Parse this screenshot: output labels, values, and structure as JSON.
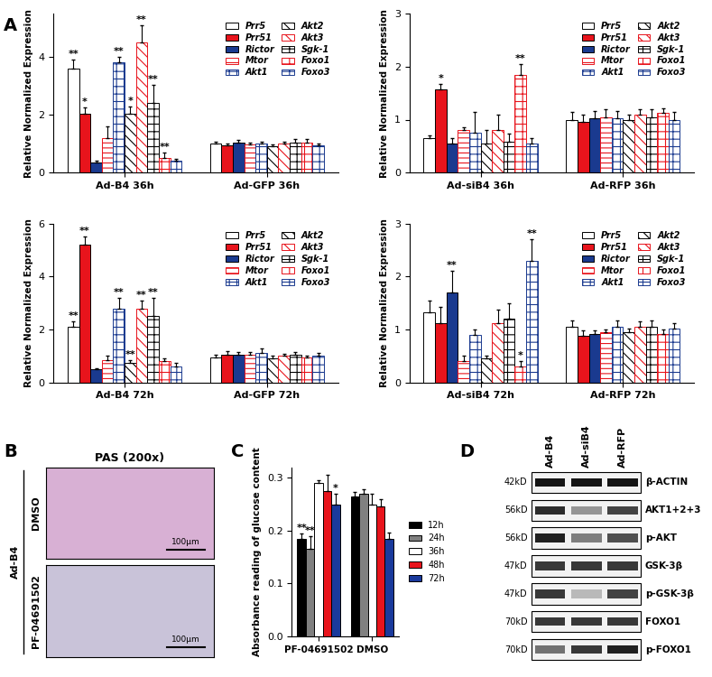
{
  "panel_labels": [
    "A",
    "B",
    "C",
    "D"
  ],
  "chart_data": [
    {
      "type": "bar",
      "y_label": "Relative Normalized Expression",
      "categories": [
        "Ad-B4 36h",
        "Ad-GFP 36h"
      ],
      "ylim": [
        0,
        5.5
      ],
      "yticks": [
        0,
        2,
        4
      ],
      "legend": "upper right",
      "series": [
        {
          "name": "Prr5",
          "color": "#ffffff",
          "values": [
            3.6,
            1.0
          ],
          "errors": [
            0.3,
            0.08
          ],
          "significance": [
            "**",
            null
          ]
        },
        {
          "name": "Prr51",
          "color": "#e8141c",
          "values": [
            2.05,
            0.95
          ],
          "errors": [
            0.2,
            0.06
          ],
          "significance": [
            "*",
            null
          ]
        },
        {
          "name": "Rictor",
          "color": "#1a3a8f",
          "values": [
            0.35,
            1.05
          ],
          "errors": [
            0.05,
            0.08
          ],
          "significance": [
            null,
            null
          ]
        },
        {
          "name": "Mtor",
          "color": "#e8141c",
          "values": [
            1.2,
            0.98
          ],
          "errors": [
            0.4,
            0.07
          ],
          "significance": [
            null,
            null
          ]
        },
        {
          "name": "Akt1",
          "color": "#1a3a8f",
          "values": [
            3.8,
            1.0
          ],
          "errors": [
            0.2,
            0.08
          ],
          "significance": [
            "**",
            null
          ]
        },
        {
          "name": "Akt2",
          "color": "#000000",
          "values": [
            2.05,
            0.92
          ],
          "errors": [
            0.25,
            0.06
          ],
          "significance": [
            "*",
            null
          ]
        },
        {
          "name": "Akt3",
          "color": "#e8141c",
          "values": [
            4.5,
            1.0
          ],
          "errors": [
            0.6,
            0.08
          ],
          "significance": [
            "**",
            null
          ]
        },
        {
          "name": "Sgk-1",
          "color": "#000000",
          "values": [
            2.4,
            1.05
          ],
          "errors": [
            0.65,
            0.1
          ],
          "significance": [
            "**",
            null
          ]
        },
        {
          "name": "Foxo1",
          "color": "#e8141c",
          "values": [
            0.5,
            1.05
          ],
          "errors": [
            0.2,
            0.1
          ],
          "significance": [
            "**",
            null
          ]
        },
        {
          "name": "Foxo3",
          "color": "#1a3a8f",
          "values": [
            0.4,
            0.95
          ],
          "errors": [
            0.08,
            0.06
          ],
          "significance": [
            null,
            null
          ]
        }
      ]
    },
    {
      "type": "bar",
      "y_label": "Relative Normalized Expression",
      "categories": [
        "Ad-siB4 36h",
        "Ad-RFP 36h"
      ],
      "ylim": [
        0,
        3
      ],
      "yticks": [
        0,
        1,
        2,
        3
      ],
      "legend": "upper right",
      "series": [
        {
          "name": "Prr5",
          "color": "#ffffff",
          "values": [
            0.65,
            1.0
          ],
          "errors": [
            0.05,
            0.15
          ],
          "significance": [
            null,
            null
          ]
        },
        {
          "name": "Prr51",
          "color": "#e8141c",
          "values": [
            1.57,
            0.95
          ],
          "errors": [
            0.1,
            0.15
          ],
          "significance": [
            "*",
            null
          ]
        },
        {
          "name": "Rictor",
          "color": "#1a3a8f",
          "values": [
            0.55,
            1.02
          ],
          "errors": [
            0.1,
            0.15
          ],
          "significance": [
            null,
            null
          ]
        },
        {
          "name": "Mtor",
          "color": "#e8141c",
          "values": [
            0.8,
            1.05
          ],
          "errors": [
            0.05,
            0.15
          ],
          "significance": [
            null,
            null
          ]
        },
        {
          "name": "Akt1",
          "color": "#1a3a8f",
          "values": [
            0.75,
            1.02
          ],
          "errors": [
            0.4,
            0.15
          ],
          "significance": [
            null,
            null
          ]
        },
        {
          "name": "Akt2",
          "color": "#000000",
          "values": [
            0.55,
            1.0
          ],
          "errors": [
            0.25,
            0.1
          ],
          "significance": [
            null,
            null
          ]
        },
        {
          "name": "Akt3",
          "color": "#e8141c",
          "values": [
            0.8,
            1.1
          ],
          "errors": [
            0.3,
            0.1
          ],
          "significance": [
            null,
            null
          ]
        },
        {
          "name": "Sgk-1",
          "color": "#000000",
          "values": [
            0.58,
            1.05
          ],
          "errors": [
            0.15,
            0.15
          ],
          "significance": [
            null,
            null
          ]
        },
        {
          "name": "Foxo1",
          "color": "#e8141c",
          "values": [
            1.85,
            1.12
          ],
          "errors": [
            0.2,
            0.1
          ],
          "significance": [
            "**",
            null
          ]
        },
        {
          "name": "Foxo3",
          "color": "#1a3a8f",
          "values": [
            0.55,
            1.0
          ],
          "errors": [
            0.1,
            0.15
          ],
          "significance": [
            null,
            null
          ]
        }
      ]
    },
    {
      "type": "bar",
      "y_label": "Relative Normalized Expression",
      "categories": [
        "Ad-B4 72h",
        "Ad-GFP 72h"
      ],
      "ylim": [
        0,
        6
      ],
      "yticks": [
        0,
        2,
        4,
        6
      ],
      "legend": "upper right",
      "series": [
        {
          "name": "Prr5",
          "color": "#ffffff",
          "values": [
            2.1,
            0.95
          ],
          "errors": [
            0.2,
            0.08
          ],
          "significance": [
            "**",
            null
          ]
        },
        {
          "name": "Prr51",
          "color": "#e8141c",
          "values": [
            5.2,
            1.05
          ],
          "errors": [
            0.3,
            0.12
          ],
          "significance": [
            "**",
            null
          ]
        },
        {
          "name": "Rictor",
          "color": "#1a3a8f",
          "values": [
            0.5,
            1.05
          ],
          "errors": [
            0.05,
            0.1
          ],
          "significance": [
            null,
            null
          ]
        },
        {
          "name": "Mtor",
          "color": "#e8141c",
          "values": [
            0.85,
            1.05
          ],
          "errors": [
            0.15,
            0.1
          ],
          "significance": [
            null,
            null
          ]
        },
        {
          "name": "Akt1",
          "color": "#1a3a8f",
          "values": [
            2.8,
            1.1
          ],
          "errors": [
            0.4,
            0.2
          ],
          "significance": [
            "**",
            null
          ]
        },
        {
          "name": "Akt2",
          "color": "#000000",
          "values": [
            0.75,
            0.92
          ],
          "errors": [
            0.1,
            0.08
          ],
          "significance": [
            "**",
            null
          ]
        },
        {
          "name": "Akt3",
          "color": "#e8141c",
          "values": [
            2.8,
            1.0
          ],
          "errors": [
            0.3,
            0.08
          ],
          "significance": [
            "**",
            null
          ]
        },
        {
          "name": "Sgk-1",
          "color": "#000000",
          "values": [
            2.5,
            1.05
          ],
          "errors": [
            0.7,
            0.1
          ],
          "significance": [
            "**",
            null
          ]
        },
        {
          "name": "Foxo1",
          "color": "#e8141c",
          "values": [
            0.8,
            0.95
          ],
          "errors": [
            0.1,
            0.06
          ],
          "significance": [
            null,
            null
          ]
        },
        {
          "name": "Foxo3",
          "color": "#1a3a8f",
          "values": [
            0.6,
            1.0
          ],
          "errors": [
            0.15,
            0.1
          ],
          "significance": [
            null,
            null
          ]
        }
      ]
    },
    {
      "type": "bar",
      "y_label": "Relative Normalized Expression",
      "categories": [
        "Ad-siB4 72h",
        "Ad-RFP 72h"
      ],
      "ylim": [
        0,
        3
      ],
      "yticks": [
        0,
        1,
        2,
        3
      ],
      "legend": "upper right",
      "series": [
        {
          "name": "Prr5",
          "color": "#ffffff",
          "values": [
            1.32,
            1.05
          ],
          "errors": [
            0.22,
            0.12
          ],
          "significance": [
            null,
            null
          ]
        },
        {
          "name": "Prr51",
          "color": "#e8141c",
          "values": [
            1.12,
            0.88
          ],
          "errors": [
            0.3,
            0.1
          ],
          "significance": [
            null,
            null
          ]
        },
        {
          "name": "Rictor",
          "color": "#1a3a8f",
          "values": [
            1.7,
            0.92
          ],
          "errors": [
            0.4,
            0.06
          ],
          "significance": [
            "**",
            null
          ]
        },
        {
          "name": "Mtor",
          "color": "#e8141c",
          "values": [
            0.4,
            0.95
          ],
          "errors": [
            0.1,
            0.05
          ],
          "significance": [
            null,
            null
          ]
        },
        {
          "name": "Akt1",
          "color": "#1a3a8f",
          "values": [
            0.9,
            1.05
          ],
          "errors": [
            0.1,
            0.12
          ],
          "significance": [
            null,
            null
          ]
        },
        {
          "name": "Akt2",
          "color": "#000000",
          "values": [
            0.45,
            0.95
          ],
          "errors": [
            0.05,
            0.06
          ],
          "significance": [
            null,
            null
          ]
        },
        {
          "name": "Akt3",
          "color": "#e8141c",
          "values": [
            1.12,
            1.05
          ],
          "errors": [
            0.25,
            0.1
          ],
          "significance": [
            null,
            null
          ]
        },
        {
          "name": "Sgk-1",
          "color": "#000000",
          "values": [
            1.2,
            1.05
          ],
          "errors": [
            0.3,
            0.12
          ],
          "significance": [
            null,
            null
          ]
        },
        {
          "name": "Foxo1",
          "color": "#e8141c",
          "values": [
            0.3,
            0.92
          ],
          "errors": [
            0.1,
            0.08
          ],
          "significance": [
            "*",
            null
          ]
        },
        {
          "name": "Foxo3",
          "color": "#1a3a8f",
          "values": [
            2.3,
            1.02
          ],
          "errors": [
            0.4,
            0.1
          ],
          "significance": [
            "**",
            null
          ]
        }
      ]
    },
    {
      "type": "bar",
      "y_label": "Absorbance reading of glucose content",
      "categories": [
        "PF-04691502",
        "DMSO"
      ],
      "ylim": [
        0,
        0.32
      ],
      "yticks": [
        {
          "value": 0,
          "label": "0.0"
        },
        0.1,
        0.2,
        0.3
      ],
      "legend": "right",
      "series": [
        {
          "name": "12h",
          "color": "#000000",
          "values": [
            0.185,
            0.265
          ],
          "errors": [
            0.01,
            0.008
          ],
          "significance": [
            "**",
            null
          ]
        },
        {
          "name": "24h",
          "color": "#808080",
          "values": [
            0.165,
            0.27
          ],
          "errors": [
            0.025,
            0.008
          ],
          "significance": [
            "**",
            null
          ]
        },
        {
          "name": "36h",
          "color": "#ffffff",
          "values": [
            0.29,
            0.25
          ],
          "errors": [
            0.005,
            0.02
          ],
          "significance": [
            null,
            null
          ]
        },
        {
          "name": "48h",
          "color": "#e8141c",
          "values": [
            0.275,
            0.245
          ],
          "errors": [
            0.03,
            0.015
          ],
          "significance": [
            null,
            null
          ]
        },
        {
          "name": "72h",
          "color": "#1a3a9c",
          "values": [
            0.25,
            0.185
          ],
          "errors": [
            0.02,
            0.012
          ],
          "significance": [
            "*",
            null
          ]
        }
      ]
    }
  ],
  "pas_panel": {
    "title": "PAS (200x)",
    "group_label": "Ad-B4",
    "rows": [
      {
        "label": "DMSO",
        "scale_bar": "100μm"
      },
      {
        "label": "PF-04691502",
        "scale_bar": "100μm"
      }
    ]
  },
  "western_blot": {
    "lanes": [
      "Ad-B4",
      "Ad-siB4",
      "Ad-RFP"
    ],
    "rows": [
      {
        "kd_label": "42kD",
        "protein": "β-ACTIN",
        "band_intensity": [
          1.0,
          1.0,
          1.0
        ]
      },
      {
        "kd_label": "56kD",
        "protein": "AKT1+2+3",
        "band_intensity": [
          0.9,
          0.45,
          0.8
        ]
      },
      {
        "kd_label": "56kD",
        "protein": "p-AKT",
        "band_intensity": [
          0.95,
          0.55,
          0.75
        ]
      },
      {
        "kd_label": "47kD",
        "protein": "GSK-3β",
        "band_intensity": [
          0.85,
          0.85,
          0.85
        ]
      },
      {
        "kd_label": "47kD",
        "protein": "p-GSK-3β",
        "band_intensity": [
          0.85,
          0.3,
          0.8
        ]
      },
      {
        "kd_label": "70kD",
        "protein": "FOXO1",
        "band_intensity": [
          0.85,
          0.85,
          0.85
        ]
      },
      {
        "kd_label": "70kD",
        "protein": "p-FOXO1",
        "band_intensity": [
          0.6,
          0.85,
          0.95
        ]
      }
    ]
  }
}
